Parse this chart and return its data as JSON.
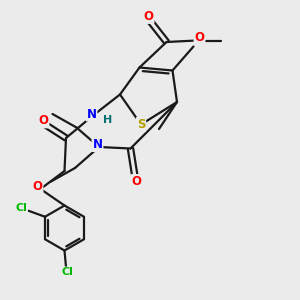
{
  "background_color": "#ebebeb",
  "bond_color": "#1a1a1a",
  "atom_colors": {
    "N": "#0000ff",
    "O": "#ff0000",
    "S": "#b8a000",
    "Cl": "#00bb00",
    "H": "#007070",
    "C": "#1a1a1a"
  },
  "fig_width": 3.0,
  "fig_height": 3.0,
  "dpi": 100
}
